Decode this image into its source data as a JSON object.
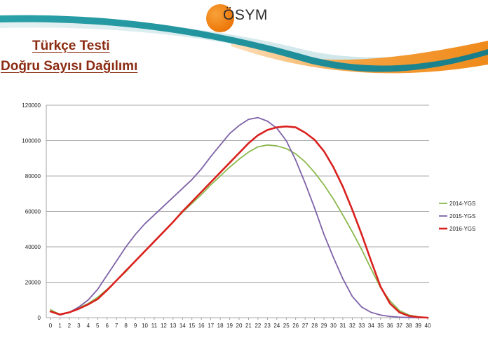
{
  "header": {
    "logo_text": "ÖSYM",
    "title_line1": "Türkçe Testi",
    "title_line2": "Doğru Sayısı Dağılımı"
  },
  "colors": {
    "title": "#8b2b12",
    "banner_teal": "#1e8f9a",
    "banner_orange": "#f28b1e",
    "logo_orange": "#ef7d0f"
  },
  "chart_data": {
    "type": "line",
    "x": [
      0,
      1,
      2,
      3,
      4,
      5,
      6,
      7,
      8,
      9,
      10,
      11,
      12,
      13,
      14,
      15,
      16,
      17,
      18,
      19,
      20,
      21,
      22,
      23,
      24,
      25,
      26,
      27,
      28,
      29,
      30,
      31,
      32,
      33,
      34,
      35,
      36,
      37,
      38,
      39,
      40
    ],
    "ylim": [
      0,
      120000
    ],
    "yticks": [
      0,
      20000,
      40000,
      60000,
      80000,
      100000,
      120000
    ],
    "ytick_labels": [
      "0",
      "20000",
      "40000",
      "60000",
      "80000",
      "100000",
      "120000"
    ],
    "xtick_labels": [
      "0",
      "1",
      "2",
      "3",
      "4",
      "5",
      "6",
      "7",
      "8",
      "9",
      "10",
      "11",
      "12",
      "13",
      "14",
      "15",
      "16",
      "17",
      "18",
      "19",
      "20",
      "21",
      "22",
      "23",
      "24",
      "25",
      "26",
      "27",
      "28",
      "29",
      "30",
      "31",
      "32",
      "33",
      "34",
      "35",
      "36",
      "37",
      "38",
      "39",
      "40"
    ],
    "grid": true,
    "legend_position": "right",
    "series": [
      {
        "name": "2014-YGS",
        "color": "#8bb84d",
        "values": [
          4500,
          1800,
          3000,
          5500,
          8000,
          11500,
          16000,
          21000,
          26000,
          32000,
          37500,
          43000,
          48500,
          54000,
          59500,
          64500,
          69500,
          75000,
          80000,
          85000,
          89500,
          93500,
          96500,
          97500,
          97000,
          95500,
          92500,
          88000,
          82000,
          75000,
          67000,
          58000,
          48500,
          38500,
          27500,
          17000,
          9500,
          4000,
          1500,
          500,
          0
        ]
      },
      {
        "name": "2015-YGS",
        "color": "#7f62a8",
        "values": [
          3500,
          1500,
          3000,
          6000,
          10000,
          16000,
          24000,
          32000,
          40000,
          47000,
          53000,
          58000,
          63000,
          68000,
          73000,
          78000,
          84000,
          91000,
          97500,
          104000,
          108500,
          112000,
          113000,
          111000,
          107000,
          100000,
          89000,
          76000,
          62000,
          47000,
          34000,
          22000,
          12000,
          6000,
          3000,
          1500,
          700,
          300,
          100,
          0,
          0
        ]
      },
      {
        "name": "2016-YGS",
        "color": "#d9211e",
        "values": [
          3500,
          1800,
          3000,
          5000,
          7500,
          10500,
          15500,
          21000,
          26500,
          32000,
          37500,
          43000,
          48500,
          54000,
          60000,
          65500,
          71000,
          76500,
          82000,
          87500,
          93000,
          98500,
          103000,
          106000,
          107500,
          108000,
          107500,
          104500,
          100500,
          94000,
          85000,
          74000,
          61000,
          47000,
          32000,
          17500,
          8000,
          3000,
          1000,
          300,
          0
        ]
      }
    ]
  }
}
